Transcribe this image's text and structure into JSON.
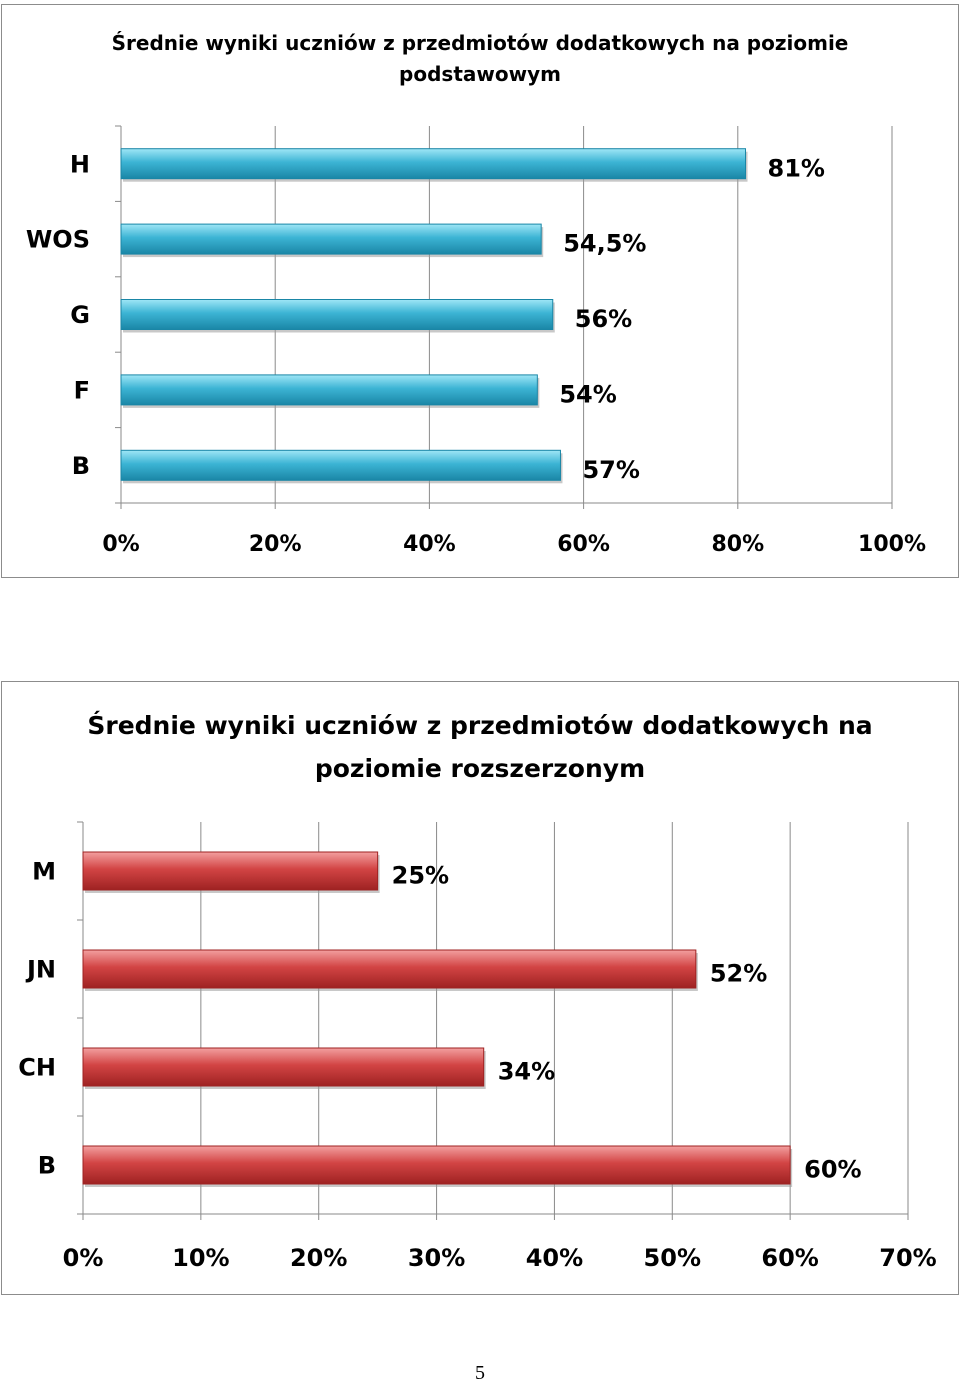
{
  "chart_data": [
    {
      "type": "bar",
      "orientation": "horizontal",
      "title": "Średnie wyniki uczniów z przedmiotów dodatkowych na poziomie podstawowym",
      "title_lines": [
        "Średnie wyniki uczniów z przedmiotów dodatkowych na poziomie",
        "podstawowym"
      ],
      "categories": [
        "H",
        "WOS",
        "G",
        "F",
        "B"
      ],
      "values": [
        81,
        54.5,
        56,
        54,
        57
      ],
      "value_labels": [
        "81%",
        "54,5%",
        "56%",
        "54%",
        "57%"
      ],
      "xlim": [
        0,
        100
      ],
      "xticks": [
        0,
        20,
        40,
        60,
        80,
        100
      ],
      "xtick_labels": [
        "0%",
        "20%",
        "40%",
        "60%",
        "80%",
        "100%"
      ],
      "grid": true,
      "legend": "none",
      "bar_color": "#3cb4d4",
      "bar_color_light": "#9fe6f6",
      "bar_color_dark": "#1a86a6"
    },
    {
      "type": "bar",
      "orientation": "horizontal",
      "title": "Średnie wyniki uczniów z przedmiotów dodatkowych na poziomie rozszerzonym",
      "title_lines": [
        "Średnie wyniki uczniów z przedmiotów dodatkowych na",
        "poziomie rozszerzonym"
      ],
      "categories": [
        "M",
        "JN",
        "CH",
        "B"
      ],
      "values": [
        25,
        52,
        34,
        60
      ],
      "value_labels": [
        "25%",
        "52%",
        "34%",
        "60%"
      ],
      "xlim": [
        0,
        70
      ],
      "xticks": [
        0,
        10,
        20,
        30,
        40,
        50,
        60,
        70
      ],
      "xtick_labels": [
        "0%",
        "10%",
        "20%",
        "30%",
        "40%",
        "50%",
        "60%",
        "70%"
      ],
      "grid": true,
      "legend": "none",
      "bar_color": "#d24444",
      "bar_color_light": "#f3a0a0",
      "bar_color_dark": "#9e2222"
    }
  ],
  "page": {
    "number": "5"
  }
}
